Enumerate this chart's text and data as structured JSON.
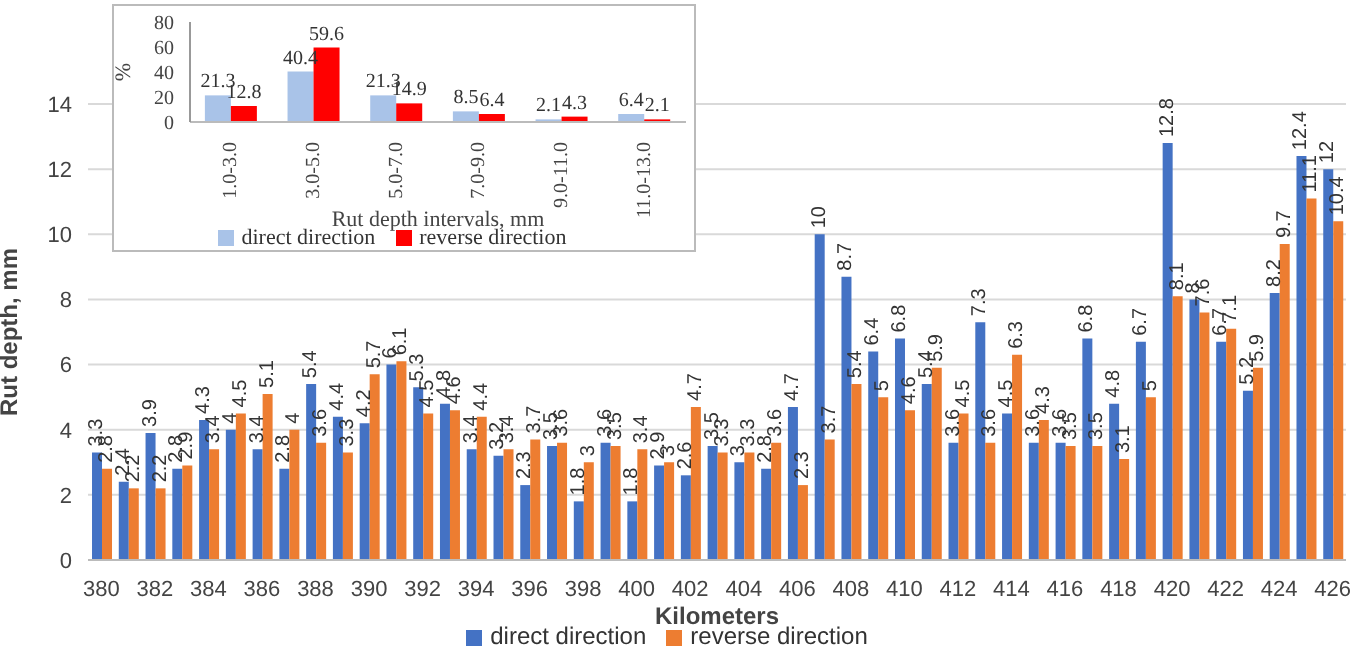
{
  "chart_data": [
    {
      "type": "bar",
      "xlabel": "Kilometers",
      "ylabel": "Rut depth, mm",
      "categories": [
        "380",
        null,
        "382",
        null,
        "384",
        null,
        "386",
        null,
        "388",
        null,
        "390",
        null,
        "392",
        null,
        "394",
        null,
        "396",
        null,
        "398",
        null,
        "400",
        null,
        "402",
        null,
        "404",
        null,
        "406",
        null,
        "408",
        null,
        "410",
        null,
        "412",
        null,
        "414",
        null,
        "416",
        null,
        "418",
        null,
        "420",
        null,
        "422",
        null,
        "424",
        null,
        "426"
      ],
      "series": [
        {
          "name": "direct direction",
          "color": "#4472c4",
          "values": [
            3.3,
            2.4,
            3.9,
            2.8,
            4.3,
            4,
            3.4,
            2.8,
            5.4,
            4.4,
            4.2,
            6,
            5.3,
            4.8,
            3.4,
            3.2,
            2.3,
            3.5,
            1.8,
            3.6,
            1.8,
            2.9,
            2.6,
            3.5,
            3,
            2.8,
            4.7,
            10,
            8.7,
            6.4,
            6.8,
            5.4,
            3.6,
            7.3,
            4.5,
            3.6,
            3.6,
            6.8,
            4.8,
            6.7,
            12.8,
            8,
            6.7,
            5.2,
            8.2,
            12.4,
            12
          ]
        },
        {
          "name": "reverse direction",
          "color": "#ed7d31",
          "values": [
            2.8,
            2.2,
            2.2,
            2.9,
            3.4,
            4.5,
            5.1,
            4,
            3.6,
            3.3,
            5.7,
            6.1,
            4.5,
            4.6,
            4.4,
            3.4,
            3.7,
            3.6,
            3,
            3.5,
            3.4,
            3,
            4.7,
            3.3,
            3.3,
            3.6,
            2.3,
            3.7,
            5.4,
            5,
            4.6,
            5.9,
            4.5,
            3.6,
            6.3,
            4.3,
            3.5,
            3.5,
            3.1,
            5,
            8.1,
            7.6,
            7.1,
            5.9,
            9.7,
            11.1,
            10.4
          ]
        }
      ],
      "ylim": [
        0,
        14
      ],
      "yticks": [
        0,
        2,
        4,
        6,
        8,
        10,
        12,
        14
      ],
      "grid": "y",
      "legend": "bottom",
      "data_labels": true
    },
    {
      "type": "bar",
      "xlabel": "Rut depth intervals, mm",
      "ylabel": "%",
      "categories": [
        "1.0-3.0",
        "3.0-5.0",
        "5.0-7.0",
        "7.0-9.0",
        "9.0-11.0",
        "11.0-13.0"
      ],
      "series": [
        {
          "name": "direct direction",
          "color": "#a9c3e8",
          "values": [
            21.3,
            40.4,
            21.3,
            8.5,
            2.1,
            6.4
          ]
        },
        {
          "name": "reverse direction",
          "color": "#ff0000",
          "values": [
            12.8,
            59.6,
            14.9,
            6.4,
            4.3,
            2.1
          ]
        }
      ],
      "ylim": [
        0,
        80
      ],
      "yticks": [
        0,
        20,
        40,
        60,
        80
      ],
      "legend": "bottom",
      "data_labels": true
    }
  ]
}
